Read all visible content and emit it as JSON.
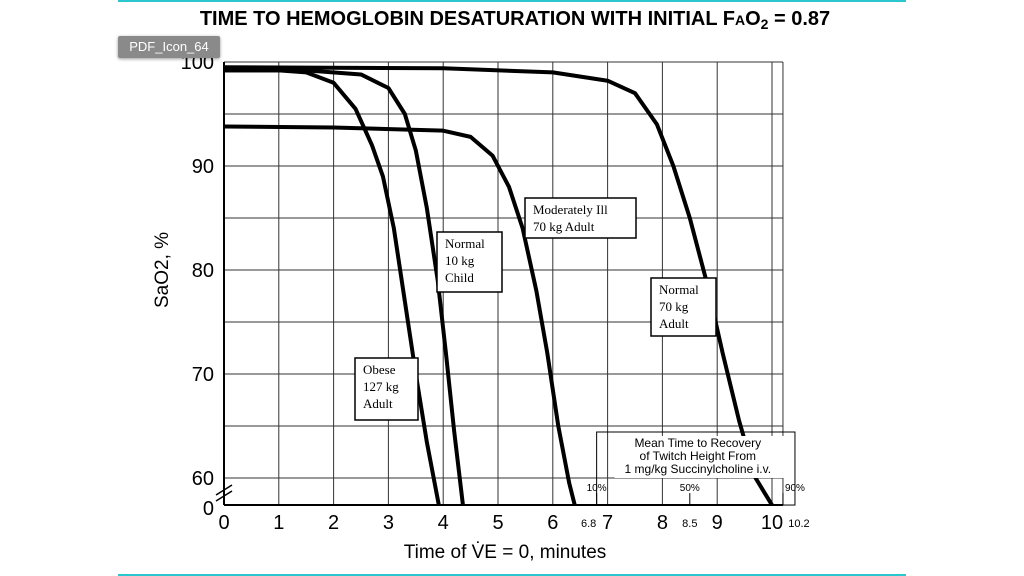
{
  "tooltip": "PDF_Icon_64",
  "colors": {
    "accent_rule": "#2cc6d0",
    "curve": "#000000",
    "grid": "#333333"
  },
  "chart_data": {
    "type": "line",
    "title": "TIME TO HEMOGLOBIN DESATURATION WITH INITIAL FAO2 = 0.87",
    "title_parts": {
      "main": "TIME TO HEMOGLOBIN DESATURATION WITH INITIAL F",
      "sub": "A",
      "o": "O",
      "two": "2",
      "end": " = 0.87"
    },
    "xlabel": "Time of V̇E = 0, minutes",
    "ylabel": "SaO2, %",
    "xlim": [
      0,
      10.2
    ],
    "ylim": [
      57.4,
      100
    ],
    "y_axis_break": true,
    "grid": true,
    "x_ticks": [
      "0",
      "1",
      "2",
      "3",
      "4",
      "5",
      "6",
      "7",
      "8",
      "9",
      "10"
    ],
    "y_ticks": [
      {
        "v": 60,
        "label": "60"
      },
      {
        "v": 70,
        "label": "70"
      },
      {
        "v": 80,
        "label": "80"
      },
      {
        "v": 90,
        "label": "90"
      },
      {
        "v": 100,
        "label": "100"
      }
    ],
    "y_break_label": "0",
    "series": [
      {
        "name": "Obese 127 kg Adult",
        "label_lines": [
          "Obese",
          "127 kg",
          "Adult"
        ],
        "points": [
          [
            0,
            99.2
          ],
          [
            1,
            99.2
          ],
          [
            1.5,
            99
          ],
          [
            2,
            98
          ],
          [
            2.4,
            95.5
          ],
          [
            2.7,
            92
          ],
          [
            2.9,
            89
          ],
          [
            3.1,
            84
          ],
          [
            3.3,
            77
          ],
          [
            3.5,
            70
          ],
          [
            3.7,
            63.5
          ],
          [
            3.92,
            57.4
          ]
        ]
      },
      {
        "name": "Normal 10 kg Child",
        "label_lines": [
          "Normal",
          "10 kg",
          "Child"
        ],
        "points": [
          [
            0,
            99.2
          ],
          [
            1.5,
            99.2
          ],
          [
            2.5,
            98.8
          ],
          [
            3,
            97.5
          ],
          [
            3.3,
            95
          ],
          [
            3.5,
            91.5
          ],
          [
            3.7,
            86
          ],
          [
            3.9,
            79
          ],
          [
            4.05,
            72
          ],
          [
            4.2,
            64.5
          ],
          [
            4.36,
            57.4
          ]
        ]
      },
      {
        "name": "Moderately Ill 70 kg Adult",
        "label_lines": [
          "Moderately Ill",
          "70 kg Adult"
        ],
        "points": [
          [
            0,
            93.8
          ],
          [
            2,
            93.7
          ],
          [
            4,
            93.4
          ],
          [
            4.5,
            92.8
          ],
          [
            4.9,
            91
          ],
          [
            5.2,
            88
          ],
          [
            5.45,
            84
          ],
          [
            5.7,
            78
          ],
          [
            5.9,
            72
          ],
          [
            6.1,
            65
          ],
          [
            6.3,
            59.5
          ],
          [
            6.4,
            57.4
          ]
        ]
      },
      {
        "name": "Normal 70 kg Adult",
        "label_lines": [
          "Normal",
          "70 kg",
          "Adult"
        ],
        "points": [
          [
            0,
            99.5
          ],
          [
            4,
            99.4
          ],
          [
            6,
            99
          ],
          [
            7,
            98.2
          ],
          [
            7.5,
            97
          ],
          [
            7.9,
            94
          ],
          [
            8.2,
            90
          ],
          [
            8.5,
            85
          ],
          [
            8.8,
            79
          ],
          [
            9.1,
            72
          ],
          [
            9.4,
            65.5
          ],
          [
            9.7,
            60
          ],
          [
            10,
            57.4
          ]
        ]
      }
    ],
    "annotation": {
      "lines": [
        "Mean Time to Recovery",
        "of Twitch Height From",
        "1 mg/kg Succinylcholine i.v."
      ],
      "markers": [
        {
          "pct": "10%",
          "x": 6.8,
          "label": "6.8"
        },
        {
          "pct": "50%",
          "x": 8.5,
          "label": "8.5"
        },
        {
          "pct": "90%",
          "x": 10.2,
          "label": "10.2"
        }
      ]
    }
  }
}
